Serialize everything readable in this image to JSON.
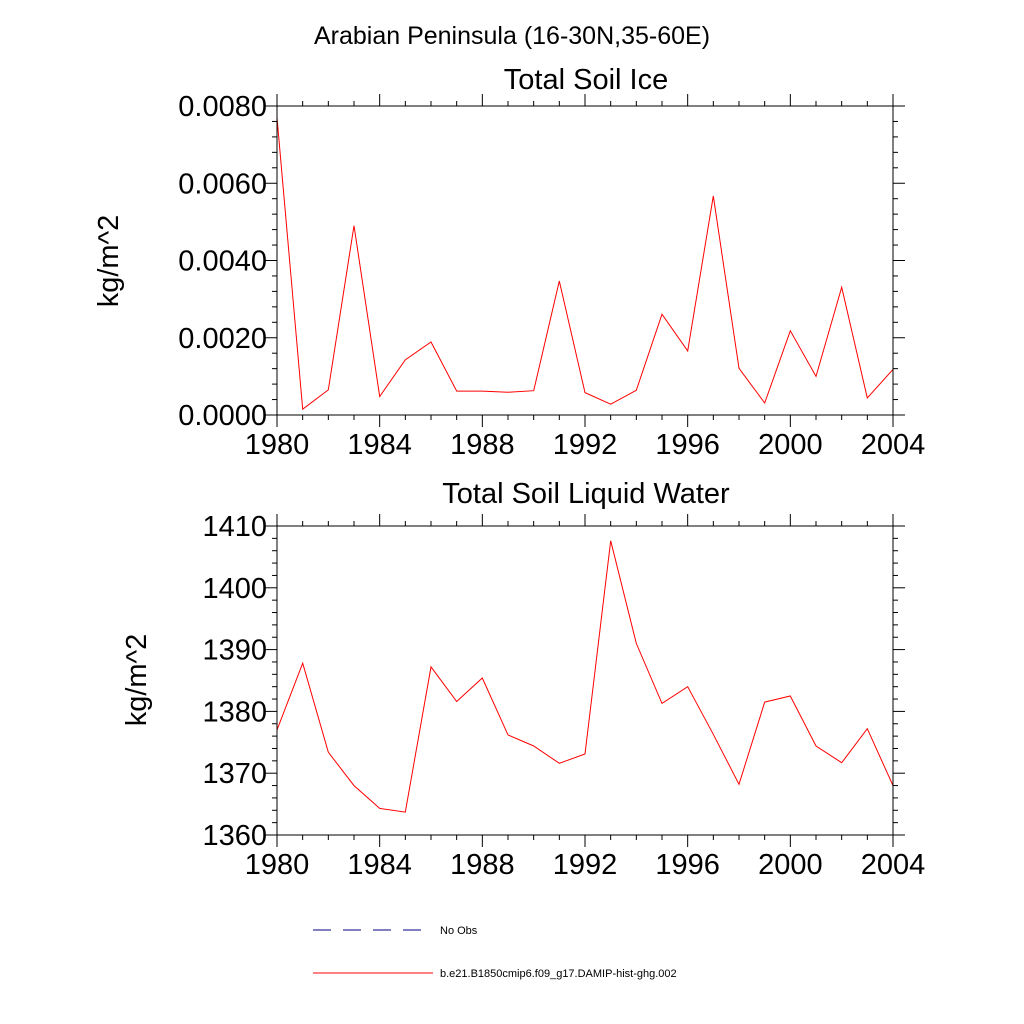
{
  "page": {
    "title": "Arabian Peninsula (16-30N,35-60E)"
  },
  "chart_data": [
    {
      "type": "line",
      "title": "Total Soil Ice",
      "xlabel": "",
      "ylabel": "kg/m^2",
      "xlim": [
        1980,
        2004
      ],
      "ylim": [
        0.0,
        0.008
      ],
      "x_ticks": [
        1980,
        1984,
        1988,
        1992,
        1996,
        2000,
        2004
      ],
      "x_tick_labels": [
        "1980",
        "1984",
        "1988",
        "1992",
        "1996",
        "2000",
        "2004"
      ],
      "y_ticks": [
        0.0,
        0.002,
        0.004,
        0.006,
        0.008
      ],
      "y_tick_labels": [
        "0.0000",
        "0.0020",
        "0.0040",
        "0.0060",
        "0.0080"
      ],
      "grid": false,
      "series": [
        {
          "name": "b.e21.B1850cmip6.f09_g17.DAMIP-hist-ghg.002",
          "color": "#ff0000",
          "x": [
            1980,
            1981,
            1982,
            1983,
            1984,
            1985,
            1986,
            1987,
            1988,
            1989,
            1990,
            1991,
            1992,
            1993,
            1994,
            1995,
            1996,
            1997,
            1998,
            1999,
            2000,
            2001,
            2002,
            2003,
            2004
          ],
          "values": [
            0.0077,
            0.00015,
            0.00065,
            0.0049,
            0.00048,
            0.00143,
            0.00189,
            0.00062,
            0.00062,
            0.00059,
            0.00063,
            0.00347,
            0.00058,
            0.00028,
            0.00064,
            0.00261,
            0.00166,
            0.00567,
            0.00121,
            0.00031,
            0.00218,
            0.001,
            0.00331,
            0.00044,
            0.00118
          ]
        }
      ]
    },
    {
      "type": "line",
      "title": "Total Soil Liquid Water",
      "xlabel": "",
      "ylabel": "kg/m^2",
      "xlim": [
        1980,
        2004
      ],
      "ylim": [
        1360,
        1410
      ],
      "x_ticks": [
        1980,
        1984,
        1988,
        1992,
        1996,
        2000,
        2004
      ],
      "x_tick_labels": [
        "1980",
        "1984",
        "1988",
        "1992",
        "1996",
        "2000",
        "2004"
      ],
      "y_ticks": [
        1360,
        1370,
        1380,
        1390,
        1400,
        1410
      ],
      "y_tick_labels": [
        "1360",
        "1370",
        "1380",
        "1390",
        "1400",
        "1410"
      ],
      "grid": false,
      "series": [
        {
          "name": "b.e21.B1850cmip6.f09_g17.DAMIP-hist-ghg.002",
          "color": "#ff0000",
          "x": [
            1980,
            1981,
            1982,
            1983,
            1984,
            1985,
            1986,
            1987,
            1988,
            1989,
            1990,
            1991,
            1992,
            1993,
            1994,
            1995,
            1996,
            1997,
            1998,
            1999,
            2000,
            2001,
            2002,
            2003,
            2004
          ],
          "values": [
            1377,
            1387.8,
            1373.4,
            1368,
            1364.3,
            1363.7,
            1387.2,
            1381.6,
            1385.4,
            1376.2,
            1374.4,
            1371.6,
            1373.1,
            1407.6,
            1391,
            1381.3,
            1384,
            1376.3,
            1368.2,
            1381.5,
            1382.5,
            1374.4,
            1371.7,
            1377.2,
            1368
          ]
        }
      ]
    }
  ],
  "legend": {
    "placement": "bottom",
    "items": [
      {
        "label": "No Obs",
        "style": "dashed",
        "color": "#000080"
      },
      {
        "label": "b.e21.B1850cmip6.f09_g17.DAMIP-hist-ghg.002",
        "style": "solid",
        "color": "#ff0000"
      }
    ]
  }
}
